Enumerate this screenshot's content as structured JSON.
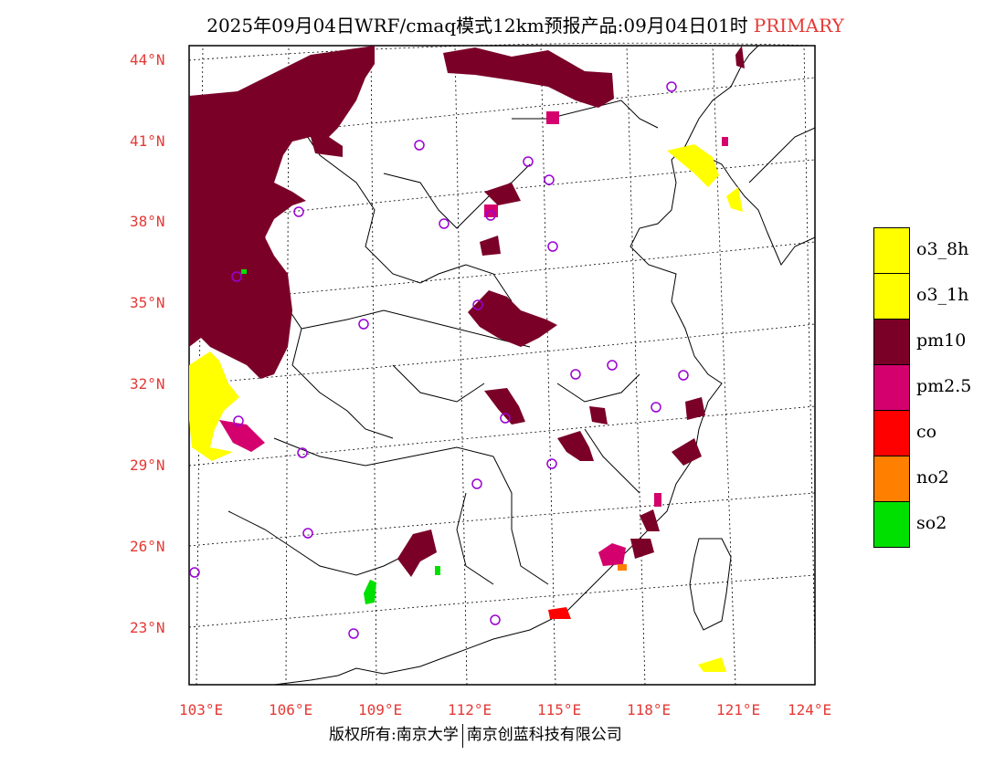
{
  "title": {
    "main": "2025年09月04日WRF/cmaq模式12km预报产品:09月04日01时",
    "tag": "PRIMARY"
  },
  "lat_labels": [
    "44°N",
    "41°N",
    "38°N",
    "35°N",
    "32°N",
    "29°N",
    "26°N",
    "23°N"
  ],
  "lon_labels": [
    "103°E",
    "106°E",
    "109°E",
    "112°E",
    "115°E",
    "118°E",
    "121°E",
    "124°E"
  ],
  "legend": {
    "items": [
      {
        "label": "o3_8h",
        "color": "#ffff00"
      },
      {
        "label": "o3_1h",
        "color": "#ffff00"
      },
      {
        "label": "pm10",
        "color": "#7a0028"
      },
      {
        "label": "pm2.5",
        "color": "#d4006e"
      },
      {
        "label": "co",
        "color": "#ff0000"
      },
      {
        "label": "no2",
        "color": "#ff7f00"
      },
      {
        "label": "so2",
        "color": "#00e000"
      }
    ]
  },
  "footer": {
    "left": "版权所有:南京大学",
    "right": "南京创蓝科技有限公司"
  },
  "colors": {
    "axis_label": "#e53935",
    "station_marker": "#9a00d4",
    "pm10": "#7a0028",
    "pm25": "#d4006e",
    "o3": "#ffff00",
    "so2": "#00e000",
    "co": "#ff0000",
    "no2": "#ff7f00"
  }
}
